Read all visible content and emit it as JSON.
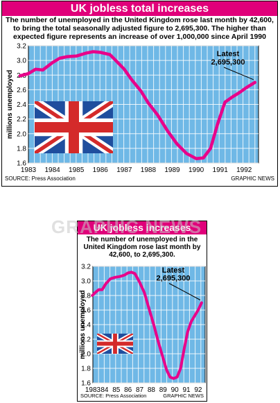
{
  "colors": {
    "title_bar": "#e0007a",
    "plot_bg": "#6fb8e6",
    "line": "#e8008a",
    "flag_blue": "#1f4e9e",
    "flag_red": "#d42a2a",
    "flag_white": "#ffffff"
  },
  "watermark_text": "GRAPHIC NEWS",
  "chart_data": [
    {
      "type": "line",
      "title": "UK jobless total increases",
      "description": "The number of unemployed in the United Kingdom rose last month by 42,600, to bring the total seasonally adjusted figure to 2,695,300. The higher than expected figure represents an increase of over 1,000,000 since April 1990",
      "ylabel": "millions unemployed",
      "xlabel": "",
      "x_ticks": [
        "1983",
        "1984",
        "1985",
        "1986",
        "1987",
        "1988",
        "1989",
        "1990",
        "1991",
        "1992"
      ],
      "y_ticks": [
        "1.6",
        "1.8",
        "2.0",
        "2.2",
        "2.4",
        "2.6",
        "2.8",
        "3.0",
        "3.2"
      ],
      "xlim": [
        1983,
        1992.6
      ],
      "ylim": [
        1.6,
        3.2
      ],
      "grid": true,
      "annotation": {
        "label": "Latest",
        "value_label": "2,695,300"
      },
      "source": "SOURCE: Press Association",
      "credit": "GRAPHIC NEWS",
      "series": [
        {
          "x": [
            1982.65,
            1983.0,
            1983.3,
            1983.6,
            1984.0,
            1984.3,
            1984.6,
            1985.0,
            1985.4,
            1985.7,
            1986.0,
            1986.4,
            1986.7,
            1987.0,
            1987.3,
            1987.7,
            1988.0,
            1988.4,
            1988.8,
            1989.2,
            1989.6,
            1990.0,
            1990.3,
            1990.6,
            1990.9,
            1991.2,
            1991.5,
            1991.8,
            1992.1,
            1992.45
          ],
          "y": [
            2.79,
            2.82,
            2.88,
            2.87,
            2.97,
            3.03,
            3.05,
            3.06,
            3.1,
            3.12,
            3.11,
            3.08,
            2.98,
            2.88,
            2.74,
            2.58,
            2.42,
            2.25,
            2.04,
            1.86,
            1.73,
            1.66,
            1.67,
            1.8,
            2.14,
            2.43,
            2.5,
            2.56,
            2.63,
            2.7
          ]
        }
      ]
    },
    {
      "type": "line",
      "title": "UK jobless increases",
      "description": "The number of unemployed in the United Kingdom rose last month by 42,600, to 2,695,300.",
      "ylabel": "millions unemployed",
      "xlabel": "",
      "x_ticks": [
        "1983",
        "84",
        "85",
        "86",
        "87",
        "88",
        "89",
        "90",
        "91",
        "92"
      ],
      "y_ticks": [
        "1.6",
        "1.8",
        "2.0",
        "2.2",
        "2.4",
        "2.6",
        "2.8",
        "3.0",
        "3.2"
      ],
      "xlim": [
        1983,
        1992.6
      ],
      "ylim": [
        1.6,
        3.2
      ],
      "grid": true,
      "annotation": {
        "label": "Latest",
        "value_label": "2,695,300"
      },
      "source": "SOURCE: Press Association",
      "credit": "GRAPHIC NEWS",
      "series": [
        {
          "x": [
            1982.95,
            1983.2,
            1983.5,
            1983.8,
            1984.1,
            1984.5,
            1984.9,
            1985.3,
            1985.7,
            1986.0,
            1986.3,
            1986.6,
            1987.0,
            1987.4,
            1987.8,
            1988.2,
            1988.6,
            1989.0,
            1989.3,
            1989.6,
            1989.9,
            1990.2,
            1990.5,
            1990.8,
            1991.1,
            1991.4,
            1991.7,
            1992.0,
            1992.3
          ],
          "y": [
            2.8,
            2.84,
            2.88,
            2.88,
            2.96,
            3.03,
            3.05,
            3.06,
            3.08,
            3.11,
            3.12,
            3.1,
            2.98,
            2.84,
            2.62,
            2.4,
            2.16,
            1.94,
            1.78,
            1.68,
            1.66,
            1.68,
            1.8,
            2.06,
            2.3,
            2.44,
            2.52,
            2.6,
            2.7
          ]
        }
      ]
    }
  ]
}
